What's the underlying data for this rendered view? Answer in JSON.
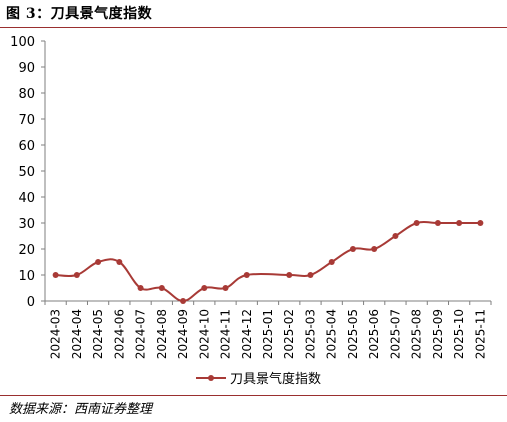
{
  "figure": {
    "title": "图 3：刀具景气度指数",
    "source": "数据来源：西南证券整理"
  },
  "colors": {
    "series": "#a83a36",
    "axis": "#7f7f7f",
    "rule": "#9a2f2f"
  },
  "chart_data": {
    "type": "line",
    "categories": [
      "2024-03",
      "2024-04",
      "2024-05",
      "2024-06",
      "2024-07",
      "2024-08",
      "2024-09",
      "2024-10",
      "2024-11",
      "2024-12",
      "2025-01",
      "2025-02",
      "2025-03",
      "2025-04",
      "2025-05",
      "2025-06",
      "2025-07",
      "2025-08",
      "2025-09",
      "2025-10",
      "2025-11"
    ],
    "series": [
      {
        "name": "刀具景气度指数",
        "values": [
          10,
          10,
          15,
          15,
          5,
          5,
          0,
          5,
          5,
          10,
          null,
          10,
          10,
          15,
          20,
          20,
          25,
          30,
          30,
          30,
          30
        ]
      }
    ],
    "ylim": [
      0,
      100
    ],
    "yticks": [
      0,
      10,
      20,
      30,
      40,
      50,
      60,
      70,
      80,
      90,
      100
    ],
    "xlabel": "",
    "ylabel": "",
    "grid": false,
    "smooth": true,
    "legend": "bottom"
  }
}
